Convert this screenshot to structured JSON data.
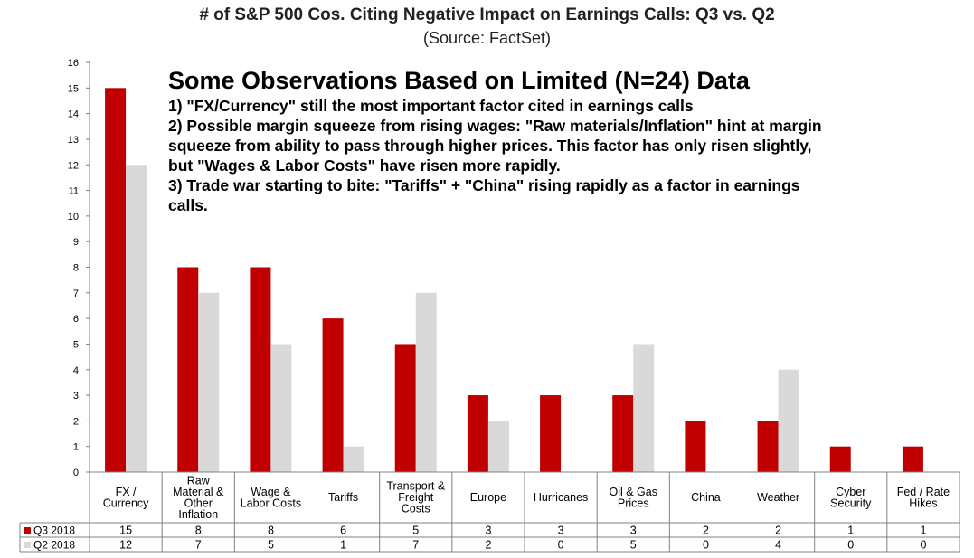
{
  "chart_data": {
    "type": "bar",
    "title": "# of S&P 500 Cos. Citing Negative Impact on Earnings Calls: Q3 vs. Q2",
    "subtitle": "(Source: FactSet)",
    "categories": [
      [
        "FX /",
        "Currency"
      ],
      [
        "Raw",
        "Material &",
        "Other",
        "Inflation"
      ],
      [
        "Wage &",
        "Labor Costs"
      ],
      [
        "Tariffs"
      ],
      [
        "Transport &",
        "Freight",
        "Costs"
      ],
      [
        "Europe"
      ],
      [
        "Hurricanes"
      ],
      [
        "Oil & Gas",
        "Prices"
      ],
      [
        "China"
      ],
      [
        "Weather"
      ],
      [
        "Cyber",
        "Security"
      ],
      [
        "Fed / Rate",
        "Hikes"
      ]
    ],
    "series": [
      {
        "name": "Q3 2018",
        "color": "#c00000",
        "values": [
          15,
          8,
          8,
          6,
          5,
          3,
          3,
          3,
          2,
          2,
          1,
          1
        ]
      },
      {
        "name": "Q2 2018",
        "color": "#d9d9d9",
        "values": [
          12,
          7,
          5,
          1,
          7,
          2,
          0,
          5,
          0,
          4,
          0,
          0
        ]
      }
    ],
    "ylim": [
      0,
      16
    ],
    "yticks": [
      0,
      1,
      2,
      3,
      4,
      5,
      6,
      7,
      8,
      9,
      10,
      11,
      12,
      13,
      14,
      15,
      16
    ],
    "grid": false,
    "legend": "data table below chart"
  },
  "observations": {
    "heading": "Some Observations Based on Limited (N=24) Data",
    "lines": [
      "1) \"FX/Currency\" still the most important factor cited in earnings calls",
      "2) Possible margin squeeze from rising wages: \"Raw materials/Inflation\" hint at margin",
      "squeeze from ability to pass through higher prices. This factor has only risen slightly,",
      "but \"Wages & Labor Costs\" have risen more rapidly.",
      "3) Trade war starting to bite: \"Tariffs\" +  \"China\" rising rapidly as a factor in earnings",
      "calls."
    ]
  }
}
